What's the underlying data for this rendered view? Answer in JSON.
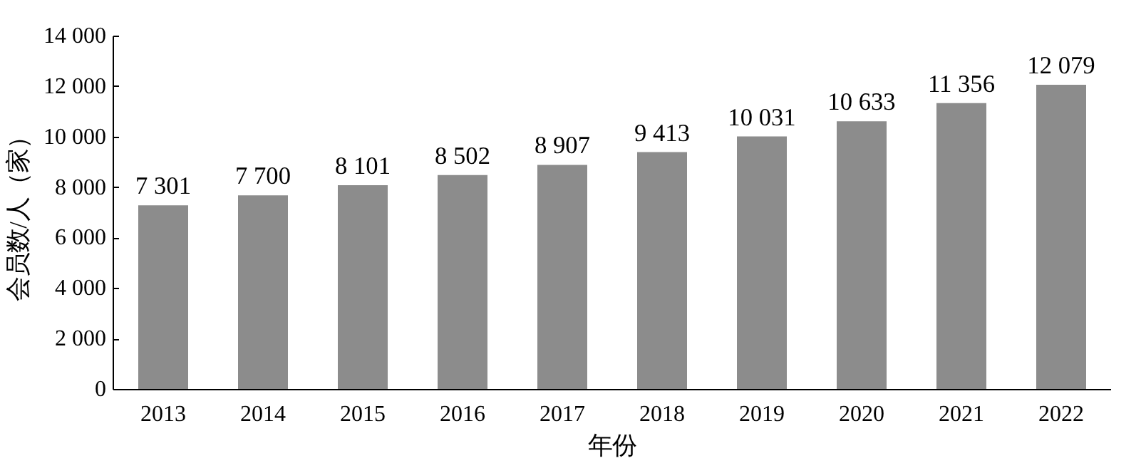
{
  "chart_data": {
    "type": "bar",
    "xlabel": "年份",
    "ylabel": "会员数/人（家）",
    "categories": [
      "2013",
      "2014",
      "2015",
      "2016",
      "2017",
      "2018",
      "2019",
      "2020",
      "2021",
      "2022"
    ],
    "values": [
      7301,
      7700,
      8101,
      8502,
      8907,
      9413,
      10031,
      10633,
      11356,
      12079
    ],
    "value_labels": [
      "7 301",
      "7 700",
      "8 101",
      "8 502",
      "8 907",
      "9 413",
      "10 031",
      "10 633",
      "11 356",
      "12 079"
    ],
    "color": "#8c8c8c",
    "ylim": [
      0,
      14000
    ],
    "yticks": [
      {
        "value": 0,
        "label": "0"
      },
      {
        "value": 2000,
        "label": "2 000"
      },
      {
        "value": 4000,
        "label": "4 000"
      },
      {
        "value": 6000,
        "label": "6 000"
      },
      {
        "value": 8000,
        "label": "8 000"
      },
      {
        "value": 10000,
        "label": "10 000"
      },
      {
        "value": 12000,
        "label": "12 000"
      },
      {
        "value": 14000,
        "label": "14 000"
      }
    ],
    "grid": false
  }
}
